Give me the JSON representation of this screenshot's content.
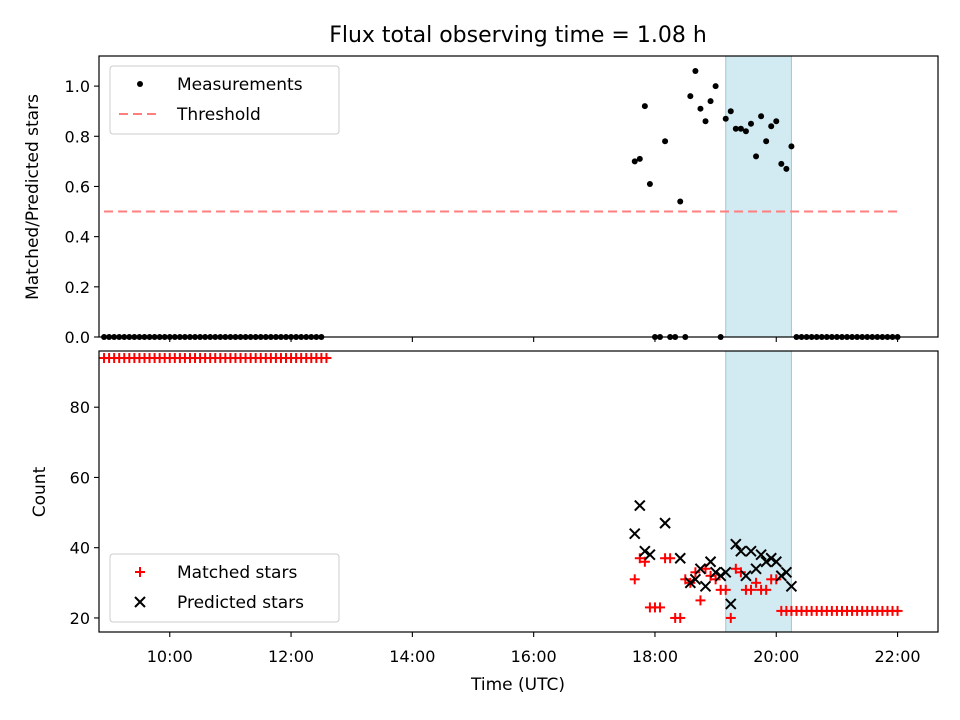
{
  "chart_data": [
    {
      "type": "scatter",
      "title": "Flux total observing time = 1.08 h",
      "xlabel": "",
      "ylabel": "Matched/Predicted stars",
      "xlim": [
        "08:50",
        "22:40"
      ],
      "ylim": [
        0,
        1.12
      ],
      "yticks": [
        0.0,
        0.2,
        0.4,
        0.6,
        0.8,
        1.0
      ],
      "ytick_labels": [
        "0.0",
        "0.2",
        "0.4",
        "0.6",
        "0.8",
        "1.0"
      ],
      "shaded_region": {
        "x0": "19:10",
        "x1": "20:15",
        "color": "#add8e6"
      },
      "legend_position": "upper-left",
      "series": [
        {
          "name": "Measurements",
          "color": "#000000",
          "marker": "dot",
          "points": [
            [
              "08:55",
              0
            ],
            [
              "09:00",
              0
            ],
            [
              "09:05",
              0
            ],
            [
              "09:10",
              0
            ],
            [
              "09:15",
              0
            ],
            [
              "09:20",
              0
            ],
            [
              "09:25",
              0
            ],
            [
              "09:30",
              0
            ],
            [
              "09:35",
              0
            ],
            [
              "09:40",
              0
            ],
            [
              "09:45",
              0
            ],
            [
              "09:50",
              0
            ],
            [
              "09:55",
              0
            ],
            [
              "10:00",
              0
            ],
            [
              "10:05",
              0
            ],
            [
              "10:10",
              0
            ],
            [
              "10:15",
              0
            ],
            [
              "10:20",
              0
            ],
            [
              "10:25",
              0
            ],
            [
              "10:30",
              0
            ],
            [
              "10:35",
              0
            ],
            [
              "10:40",
              0
            ],
            [
              "10:45",
              0
            ],
            [
              "10:50",
              0
            ],
            [
              "10:55",
              0
            ],
            [
              "11:00",
              0
            ],
            [
              "11:05",
              0
            ],
            [
              "11:10",
              0
            ],
            [
              "11:15",
              0
            ],
            [
              "11:20",
              0
            ],
            [
              "11:25",
              0
            ],
            [
              "11:30",
              0
            ],
            [
              "11:35",
              0
            ],
            [
              "11:40",
              0
            ],
            [
              "11:45",
              0
            ],
            [
              "11:50",
              0
            ],
            [
              "11:55",
              0
            ],
            [
              "12:00",
              0
            ],
            [
              "12:05",
              0
            ],
            [
              "12:10",
              0
            ],
            [
              "12:15",
              0
            ],
            [
              "12:20",
              0
            ],
            [
              "12:25",
              0
            ],
            [
              "12:30",
              0
            ],
            [
              "17:40",
              0.7
            ],
            [
              "17:45",
              0.71
            ],
            [
              "17:50",
              0.92
            ],
            [
              "17:55",
              0.61
            ],
            [
              "18:00",
              0
            ],
            [
              "18:05",
              0
            ],
            [
              "18:10",
              0.78
            ],
            [
              "18:15",
              0
            ],
            [
              "18:20",
              0
            ],
            [
              "18:25",
              0.54
            ],
            [
              "18:30",
              0
            ],
            [
              "18:35",
              0.96
            ],
            [
              "18:40",
              1.06
            ],
            [
              "18:45",
              0.91
            ],
            [
              "18:50",
              0.86
            ],
            [
              "18:55",
              0.94
            ],
            [
              "19:00",
              1.0
            ],
            [
              "19:05",
              0
            ],
            [
              "19:10",
              0.87
            ],
            [
              "19:15",
              0.9
            ],
            [
              "19:20",
              0.83
            ],
            [
              "19:25",
              0.83
            ],
            [
              "19:30",
              0.82
            ],
            [
              "19:35",
              0.85
            ],
            [
              "19:40",
              0.72
            ],
            [
              "19:45",
              0.88
            ],
            [
              "19:50",
              0.78
            ],
            [
              "19:55",
              0.84
            ],
            [
              "20:00",
              0.86
            ],
            [
              "20:05",
              0.69
            ],
            [
              "20:10",
              0.67
            ],
            [
              "20:15",
              0.76
            ],
            [
              "20:20",
              0
            ],
            [
              "20:25",
              0
            ],
            [
              "20:30",
              0
            ],
            [
              "20:35",
              0
            ],
            [
              "20:40",
              0
            ],
            [
              "20:45",
              0
            ],
            [
              "20:50",
              0
            ],
            [
              "20:55",
              0
            ],
            [
              "21:00",
              0
            ],
            [
              "21:05",
              0
            ],
            [
              "21:10",
              0
            ],
            [
              "21:15",
              0
            ],
            [
              "21:20",
              0
            ],
            [
              "21:25",
              0
            ],
            [
              "21:30",
              0
            ],
            [
              "21:35",
              0
            ],
            [
              "21:40",
              0
            ],
            [
              "21:45",
              0
            ],
            [
              "21:50",
              0
            ],
            [
              "21:55",
              0
            ],
            [
              "22:00",
              0
            ]
          ]
        },
        {
          "name": "Threshold",
          "color": "#ff7f7f",
          "marker": "dashed-line",
          "points": [
            [
              "08:55",
              0.5
            ],
            [
              "22:00",
              0.5
            ]
          ]
        }
      ]
    },
    {
      "type": "scatter",
      "title": "",
      "xlabel": "Time (UTC)",
      "ylabel": "Count",
      "xlim": [
        "08:50",
        "22:40"
      ],
      "ylim": [
        16,
        96
      ],
      "yticks": [
        20,
        40,
        60,
        80
      ],
      "ytick_labels": [
        "20",
        "40",
        "60",
        "80"
      ],
      "xticks": [
        "10:00",
        "12:00",
        "14:00",
        "16:00",
        "18:00",
        "20:00",
        "22:00"
      ],
      "shaded_region": {
        "x0": "19:10",
        "x1": "20:15",
        "color": "#add8e6"
      },
      "legend_position": "lower-left",
      "series": [
        {
          "name": "Matched stars",
          "color": "#ff0000",
          "marker": "plus",
          "points": [
            [
              "08:55",
              94
            ],
            [
              "09:00",
              94
            ],
            [
              "09:05",
              94
            ],
            [
              "09:10",
              94
            ],
            [
              "09:15",
              94
            ],
            [
              "09:20",
              94
            ],
            [
              "09:25",
              94
            ],
            [
              "09:30",
              94
            ],
            [
              "09:35",
              94
            ],
            [
              "09:40",
              94
            ],
            [
              "09:45",
              94
            ],
            [
              "09:50",
              94
            ],
            [
              "09:55",
              94
            ],
            [
              "10:00",
              94
            ],
            [
              "10:05",
              94
            ],
            [
              "10:10",
              94
            ],
            [
              "10:15",
              94
            ],
            [
              "10:20",
              94
            ],
            [
              "10:25",
              94
            ],
            [
              "10:30",
              94
            ],
            [
              "10:35",
              94
            ],
            [
              "10:40",
              94
            ],
            [
              "10:45",
              94
            ],
            [
              "10:50",
              94
            ],
            [
              "10:55",
              94
            ],
            [
              "11:00",
              94
            ],
            [
              "11:05",
              94
            ],
            [
              "11:10",
              94
            ],
            [
              "11:15",
              94
            ],
            [
              "11:20",
              94
            ],
            [
              "11:25",
              94
            ],
            [
              "11:30",
              94
            ],
            [
              "11:35",
              94
            ],
            [
              "11:40",
              94
            ],
            [
              "11:45",
              94
            ],
            [
              "11:50",
              94
            ],
            [
              "11:55",
              94
            ],
            [
              "12:00",
              94
            ],
            [
              "12:05",
              94
            ],
            [
              "12:10",
              94
            ],
            [
              "12:15",
              94
            ],
            [
              "12:20",
              94
            ],
            [
              "12:25",
              94
            ],
            [
              "12:30",
              94
            ],
            [
              "12:35",
              94
            ],
            [
              "17:40",
              31
            ],
            [
              "17:45",
              37
            ],
            [
              "17:50",
              36
            ],
            [
              "17:55",
              23
            ],
            [
              "18:00",
              23
            ],
            [
              "18:05",
              23
            ],
            [
              "18:10",
              37
            ],
            [
              "18:15",
              37
            ],
            [
              "18:20",
              20
            ],
            [
              "18:25",
              20
            ],
            [
              "18:30",
              31
            ],
            [
              "18:35",
              30
            ],
            [
              "18:40",
              33
            ],
            [
              "18:45",
              25
            ],
            [
              "18:50",
              34
            ],
            [
              "18:55",
              32
            ],
            [
              "19:00",
              31
            ],
            [
              "19:05",
              28
            ],
            [
              "19:10",
              28
            ],
            [
              "19:15",
              20
            ],
            [
              "19:20",
              34
            ],
            [
              "19:25",
              33
            ],
            [
              "19:30",
              28
            ],
            [
              "19:35",
              28
            ],
            [
              "19:40",
              30
            ],
            [
              "19:45",
              28
            ],
            [
              "19:50",
              28
            ],
            [
              "19:55",
              31
            ],
            [
              "20:00",
              31
            ],
            [
              "20:05",
              22
            ],
            [
              "20:10",
              22
            ],
            [
              "20:15",
              22
            ],
            [
              "20:20",
              22
            ],
            [
              "20:25",
              22
            ],
            [
              "20:30",
              22
            ],
            [
              "20:35",
              22
            ],
            [
              "20:40",
              22
            ],
            [
              "20:45",
              22
            ],
            [
              "20:50",
              22
            ],
            [
              "20:55",
              22
            ],
            [
              "21:00",
              22
            ],
            [
              "21:05",
              22
            ],
            [
              "21:10",
              22
            ],
            [
              "21:15",
              22
            ],
            [
              "21:20",
              22
            ],
            [
              "21:25",
              22
            ],
            [
              "21:30",
              22
            ],
            [
              "21:35",
              22
            ],
            [
              "21:40",
              22
            ],
            [
              "21:45",
              22
            ],
            [
              "21:50",
              22
            ],
            [
              "21:55",
              22
            ],
            [
              "22:00",
              22
            ]
          ]
        },
        {
          "name": "Predicted stars",
          "color": "#000000",
          "marker": "x",
          "points": [
            [
              "17:40",
              44
            ],
            [
              "17:45",
              52
            ],
            [
              "17:50",
              39
            ],
            [
              "17:55",
              38
            ],
            [
              "18:10",
              47
            ],
            [
              "18:25",
              37
            ],
            [
              "18:35",
              30
            ],
            [
              "18:40",
              31
            ],
            [
              "18:45",
              34
            ],
            [
              "18:50",
              29
            ],
            [
              "18:55",
              36
            ],
            [
              "19:00",
              33
            ],
            [
              "19:05",
              32
            ],
            [
              "19:10",
              33
            ],
            [
              "19:15",
              24
            ],
            [
              "19:20",
              41
            ],
            [
              "19:25",
              39
            ],
            [
              "19:30",
              32
            ],
            [
              "19:35",
              39
            ],
            [
              "19:40",
              34
            ],
            [
              "19:45",
              38
            ],
            [
              "19:50",
              36
            ],
            [
              "19:55",
              37
            ],
            [
              "20:00",
              36
            ],
            [
              "20:05",
              32
            ],
            [
              "20:10",
              33
            ],
            [
              "20:15",
              29
            ]
          ]
        }
      ]
    }
  ]
}
